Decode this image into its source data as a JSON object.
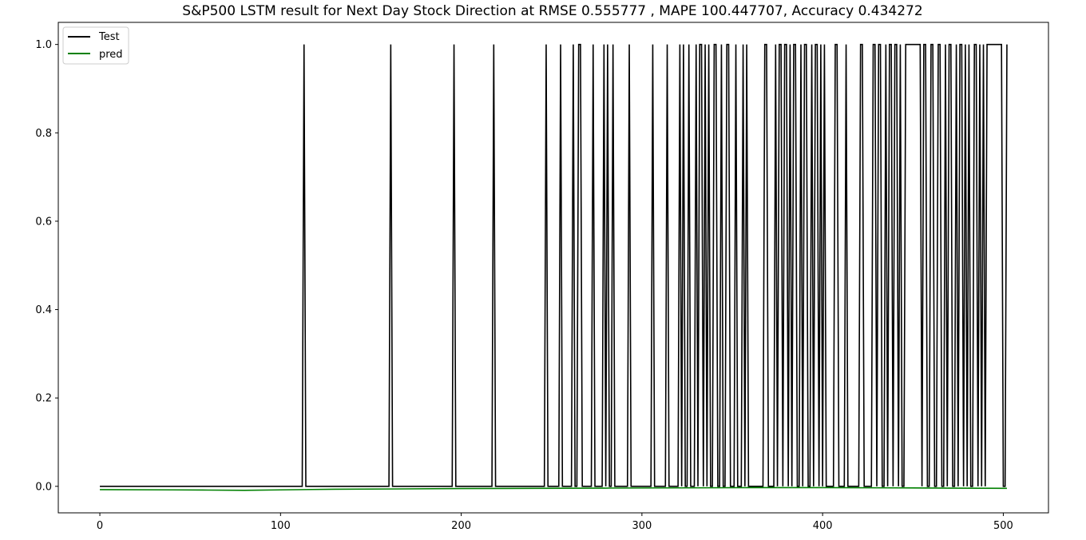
{
  "chart_data": {
    "type": "line",
    "title": "S&P500 LSTM result for Next Day Stock Direction at RMSE 0.555777 , MAPE 100.447707, Accuracy 0.434272",
    "xlabel": "",
    "ylabel": "",
    "xlim": [
      -23,
      525
    ],
    "ylim": [
      -0.06,
      1.05
    ],
    "x_ticks": [
      0,
      100,
      200,
      300,
      400,
      500
    ],
    "y_ticks": [
      0.0,
      0.2,
      0.4,
      0.6,
      0.8,
      1.0
    ],
    "x_tick_labels": [
      "0",
      "100",
      "200",
      "300",
      "400",
      "500"
    ],
    "y_tick_labels": [
      "0.0",
      "0.2",
      "0.4",
      "0.6",
      "0.8",
      "1.0"
    ],
    "grid": false,
    "legend_position": "top-left",
    "series": [
      {
        "name": "Test",
        "color": "#000000",
        "n_points": 503,
        "ones_runs": [
          [
            113,
            113
          ],
          [
            161,
            161
          ],
          [
            196,
            196
          ],
          [
            218,
            218
          ],
          [
            247,
            247
          ],
          [
            255,
            255
          ],
          [
            262,
            262
          ],
          [
            265,
            266
          ],
          [
            273,
            273
          ],
          [
            279,
            279
          ],
          [
            281,
            281
          ],
          [
            284,
            284
          ],
          [
            293,
            293
          ],
          [
            306,
            306
          ],
          [
            314,
            314
          ],
          [
            321,
            321
          ],
          [
            323,
            323
          ],
          [
            326,
            326
          ],
          [
            330,
            330
          ],
          [
            332,
            333
          ],
          [
            335,
            335
          ],
          [
            337,
            337
          ],
          [
            340,
            341
          ],
          [
            344,
            344
          ],
          [
            347,
            348
          ],
          [
            352,
            352
          ],
          [
            356,
            356
          ],
          [
            358,
            358
          ],
          [
            368,
            369
          ],
          [
            374,
            374
          ],
          [
            376,
            377
          ],
          [
            379,
            380
          ],
          [
            382,
            382
          ],
          [
            384,
            385
          ],
          [
            388,
            388
          ],
          [
            390,
            391
          ],
          [
            394,
            394
          ],
          [
            396,
            397
          ],
          [
            399,
            399
          ],
          [
            401,
            401
          ],
          [
            407,
            408
          ],
          [
            413,
            413
          ],
          [
            421,
            422
          ],
          [
            428,
            429
          ],
          [
            431,
            432
          ],
          [
            435,
            435
          ],
          [
            437,
            438
          ],
          [
            440,
            441
          ],
          [
            443,
            443
          ],
          [
            446,
            454
          ],
          [
            456,
            457
          ],
          [
            460,
            461
          ],
          [
            464,
            465
          ],
          [
            468,
            468
          ],
          [
            470,
            471
          ],
          [
            474,
            474
          ],
          [
            476,
            477
          ],
          [
            479,
            479
          ],
          [
            481,
            481
          ],
          [
            484,
            485
          ],
          [
            487,
            487
          ],
          [
            489,
            489
          ],
          [
            491,
            499
          ],
          [
            502,
            502
          ]
        ]
      },
      {
        "name": "pred",
        "color": "#008000",
        "points": [
          [
            0,
            -0.0075
          ],
          [
            40,
            -0.008
          ],
          [
            60,
            -0.0085
          ],
          [
            80,
            -0.009
          ],
          [
            100,
            -0.008
          ],
          [
            130,
            -0.0065
          ],
          [
            160,
            -0.006
          ],
          [
            200,
            -0.005
          ],
          [
            240,
            -0.0045
          ],
          [
            280,
            -0.004
          ],
          [
            320,
            -0.0035
          ],
          [
            360,
            -0.003
          ],
          [
            400,
            -0.003
          ],
          [
            440,
            -0.0035
          ],
          [
            470,
            -0.004
          ],
          [
            502,
            -0.0045
          ]
        ]
      }
    ]
  }
}
